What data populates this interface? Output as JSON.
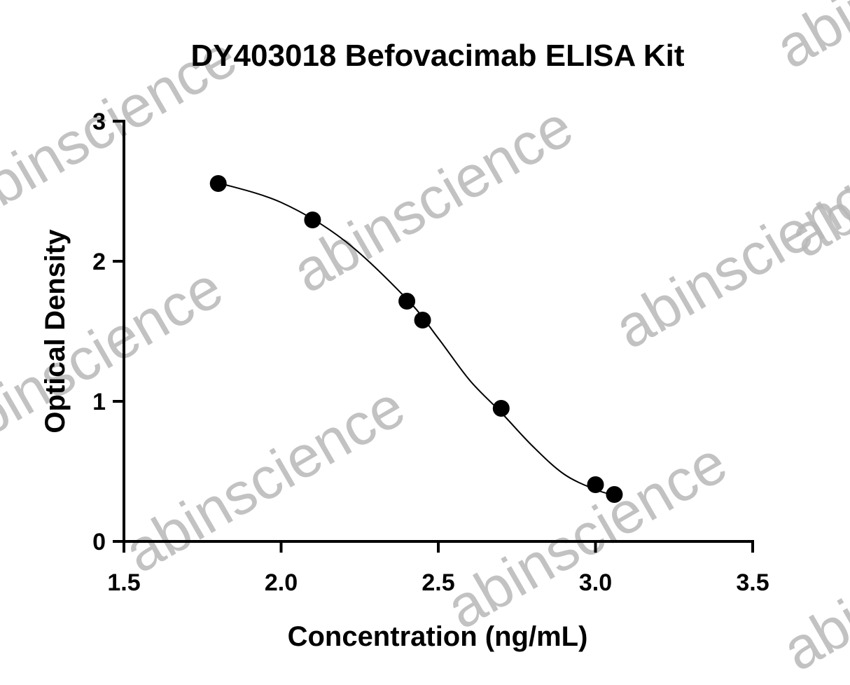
{
  "chart_data": {
    "type": "scatter",
    "title": "DY403018 Befovacimab ELISA Kit",
    "xlabel": "Concentration (ng/mL)",
    "ylabel": "Optical Density",
    "x": [
      1.8,
      2.1,
      2.4,
      2.45,
      2.7,
      3.0,
      3.06
    ],
    "values": [
      2.555,
      2.295,
      1.715,
      1.58,
      0.95,
      0.405,
      0.335
    ],
    "color": "#000000",
    "fit": {
      "x": [
        1.8,
        2.0,
        2.2,
        2.4,
        2.5,
        2.6,
        2.7,
        2.8,
        2.9,
        3.0,
        3.06
      ],
      "values": [
        2.56,
        2.42,
        2.15,
        1.73,
        1.45,
        1.15,
        0.92,
        0.68,
        0.48,
        0.37,
        0.33
      ]
    },
    "xlim": [
      1.5,
      3.5
    ],
    "xticks": [
      1.5,
      {
        "value": 2,
        "label": "2.0"
      },
      2.5,
      {
        "value": 3,
        "label": "3.0"
      },
      3.5
    ],
    "ylim": [
      0,
      3
    ],
    "yticks": [
      0,
      1,
      2,
      3
    ],
    "watermark": "abinscience"
  }
}
